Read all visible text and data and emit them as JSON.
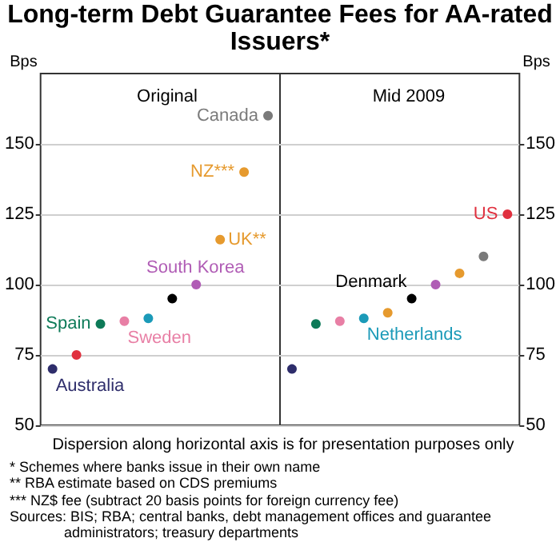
{
  "chart_data": [
    {
      "type": "scatter",
      "title": "Long-term Debt Guarantee Fees for AA-rated Issuers*",
      "subtitle": "Original",
      "ylabel": "Bps",
      "categories": [
        null,
        null,
        null,
        null,
        null,
        null,
        null,
        null,
        null,
        null
      ],
      "ylim": [
        50,
        175
      ],
      "yticks": [
        50,
        75,
        100,
        125,
        150
      ],
      "grid": "y",
      "marker": "circle",
      "annotations": [
        "Dispersion along horizontal axis is for presentation purposes only",
        "*    Schemes where banks issue in their own name",
        "**   RBA estimate based on CDS premiums",
        "***  NZ$ fee (subtract 20 basis points for foreign currency fee)",
        "Sources: BIS; RBA; central banks, debt management offices and guarantee administrators; treasury departments"
      ],
      "series": [
        {
          "name": "Australia",
          "color": "#2e2d6b",
          "values": [
            70,
            null,
            null,
            null,
            null,
            null,
            null,
            null,
            null,
            null
          ]
        },
        {
          "color": "#e0303e",
          "values": [
            null,
            75,
            null,
            null,
            null,
            null,
            null,
            null,
            null,
            null
          ]
        },
        {
          "name": "Spain",
          "color": "#0d7a58",
          "values": [
            null,
            null,
            86,
            null,
            null,
            null,
            null,
            null,
            null,
            null
          ]
        },
        {
          "name": "Sweden",
          "color": "#e87fa5",
          "values": [
            null,
            null,
            null,
            87,
            null,
            null,
            null,
            null,
            null,
            null
          ]
        },
        {
          "color": "#1b9ab8",
          "values": [
            null,
            null,
            null,
            null,
            88,
            null,
            null,
            null,
            null,
            null
          ]
        },
        {
          "color": "#000000",
          "values": [
            null,
            null,
            null,
            null,
            null,
            95,
            null,
            null,
            null,
            null
          ]
        },
        {
          "name": "South Korea",
          "color": "#b05cb5",
          "values": [
            null,
            null,
            null,
            null,
            null,
            null,
            100,
            null,
            null,
            null
          ]
        },
        {
          "name": "UK**",
          "color": "#e69a2e",
          "values": [
            null,
            null,
            null,
            null,
            null,
            null,
            null,
            116,
            null,
            null
          ]
        },
        {
          "name": "NZ***",
          "color": "#e69a2e",
          "values": [
            null,
            null,
            null,
            null,
            null,
            null,
            null,
            null,
            140,
            null
          ]
        },
        {
          "name": "Canada",
          "color": "#7a7a7a",
          "values": [
            null,
            null,
            null,
            null,
            null,
            null,
            null,
            null,
            null,
            160
          ]
        }
      ]
    },
    {
      "type": "scatter",
      "subtitle": "Mid 2009",
      "ylabel": "Bps",
      "categories": [
        null,
        null,
        null,
        null,
        null,
        null,
        null,
        null,
        null,
        null
      ],
      "ylim": [
        50,
        175
      ],
      "yticks": [
        50,
        75,
        100,
        125,
        150
      ],
      "grid": "y",
      "marker": "circle",
      "series": [
        {
          "color": "#2e2d6b",
          "values": [
            70,
            null,
            null,
            null,
            null,
            null,
            null,
            null,
            null,
            null
          ]
        },
        {
          "color": "#0d7a58",
          "values": [
            null,
            86,
            null,
            null,
            null,
            null,
            null,
            null,
            null,
            null
          ]
        },
        {
          "color": "#e87fa5",
          "values": [
            null,
            null,
            87,
            null,
            null,
            null,
            null,
            null,
            null,
            null
          ]
        },
        {
          "name": "Netherlands",
          "color": "#1b9ab8",
          "values": [
            null,
            null,
            null,
            88,
            null,
            null,
            null,
            null,
            null,
            null
          ]
        },
        {
          "color": "#e69a2e",
          "values": [
            null,
            null,
            null,
            null,
            90,
            null,
            null,
            null,
            null,
            null
          ]
        },
        {
          "name": "Denmark",
          "color": "#000000",
          "values": [
            null,
            null,
            null,
            null,
            null,
            95,
            null,
            null,
            null,
            null
          ]
        },
        {
          "color": "#b05cb5",
          "values": [
            null,
            null,
            null,
            null,
            null,
            null,
            100,
            null,
            null,
            null
          ]
        },
        {
          "color": "#e69a2e",
          "values": [
            null,
            null,
            null,
            null,
            null,
            null,
            null,
            104,
            null,
            null
          ]
        },
        {
          "color": "#7a7a7a",
          "values": [
            null,
            null,
            null,
            null,
            null,
            null,
            null,
            null,
            110,
            null
          ]
        },
        {
          "name": "US",
          "color": "#e0303e",
          "values": [
            null,
            null,
            null,
            null,
            null,
            null,
            null,
            null,
            null,
            125
          ]
        }
      ]
    }
  ]
}
